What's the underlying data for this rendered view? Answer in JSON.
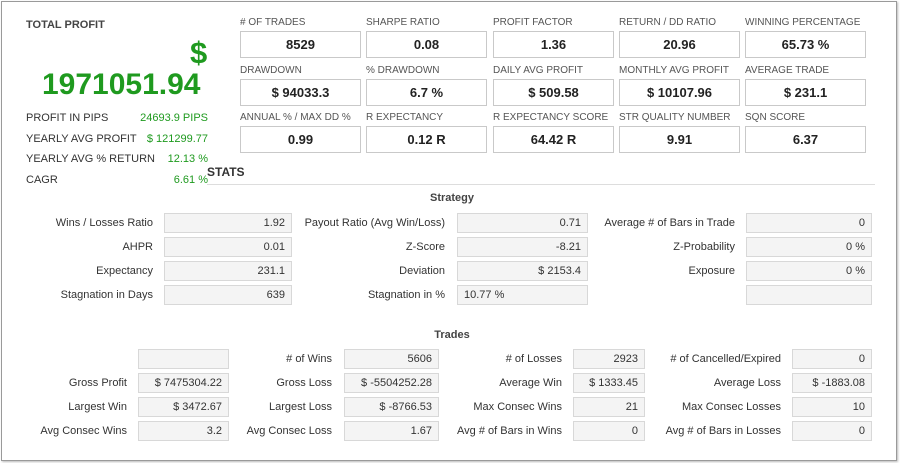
{
  "total_profit": {
    "title": "TOTAL PROFIT",
    "currency": "$",
    "value": "1971051.94",
    "rows": [
      {
        "label": "PROFIT IN PIPS",
        "value": "24693.9 PIPS"
      },
      {
        "label": "YEARLY AVG PROFIT",
        "value": "$ 121299.77"
      },
      {
        "label": "YEARLY AVG % RETURN",
        "value": "12.13 %"
      },
      {
        "label": "CAGR",
        "value": "6.61 %"
      }
    ]
  },
  "metrics": [
    [
      {
        "label": "# OF TRADES",
        "value": "8529"
      },
      {
        "label": "SHARPE RATIO",
        "value": "0.08"
      },
      {
        "label": "PROFIT FACTOR",
        "value": "1.36"
      },
      {
        "label": "RETURN / DD RATIO",
        "value": "20.96"
      },
      {
        "label": "WINNING PERCENTAGE",
        "value": "65.73 %"
      }
    ],
    [
      {
        "label": "DRAWDOWN",
        "value": "$ 94033.3"
      },
      {
        "label": "% DRAWDOWN",
        "value": "6.7 %"
      },
      {
        "label": "DAILY AVG PROFIT",
        "value": "$ 509.58"
      },
      {
        "label": "MONTHLY AVG PROFIT",
        "value": "$ 10107.96"
      },
      {
        "label": "AVERAGE TRADE",
        "value": "$ 231.1"
      }
    ],
    [
      {
        "label": "ANNUAL % / MAX DD %",
        "value": "0.99"
      },
      {
        "label": "R EXPECTANCY",
        "value": "0.12 R"
      },
      {
        "label": "R EXPECTANCY SCORE",
        "value": "64.42 R"
      },
      {
        "label": "STR QUALITY NUMBER",
        "value": "9.91"
      },
      {
        "label": "SQN SCORE",
        "value": "6.37"
      }
    ]
  ],
  "stats": {
    "title": "STATS",
    "strategy": {
      "title": "Strategy",
      "rows": [
        [
          {
            "label": "Wins / Losses Ratio",
            "value": "1.92"
          },
          {
            "label": "Payout Ratio (Avg Win/Loss)",
            "value": "0.71"
          },
          {
            "label": "Average # of Bars in Trade",
            "value": "0"
          }
        ],
        [
          {
            "label": "AHPR",
            "value": "0.01"
          },
          {
            "label": "Z-Score",
            "value": "-8.21"
          },
          {
            "label": "Z-Probability",
            "value": "0 %"
          }
        ],
        [
          {
            "label": "Expectancy",
            "value": "231.1"
          },
          {
            "label": "Deviation",
            "value": "$ 2153.4"
          },
          {
            "label": "Exposure",
            "value": "0 %"
          }
        ],
        [
          {
            "label": "Stagnation in Days",
            "value": "639"
          },
          {
            "label": "Stagnation in %",
            "value": "10.77 %"
          },
          {
            "label": "",
            "value": ""
          }
        ]
      ]
    },
    "trades": {
      "title": "Trades",
      "rows": [
        [
          {
            "label": "",
            "value": ""
          },
          {
            "label": "# of Wins",
            "value": "5606"
          },
          {
            "label": "# of Losses",
            "value": "2923"
          },
          {
            "label": "# of Cancelled/Expired",
            "value": "0"
          }
        ],
        [
          {
            "label": "Gross Profit",
            "value": "$ 7475304.22"
          },
          {
            "label": "Gross Loss",
            "value": "$ -5504252.28"
          },
          {
            "label": "Average Win",
            "value": "$ 1333.45"
          },
          {
            "label": "Average Loss",
            "value": "$ -1883.08"
          }
        ],
        [
          {
            "label": "Largest Win",
            "value": "$ 3472.67"
          },
          {
            "label": "Largest Loss",
            "value": "$ -8766.53"
          },
          {
            "label": "Max Consec Wins",
            "value": "21"
          },
          {
            "label": "Max Consec Losses",
            "value": "10"
          }
        ],
        [
          {
            "label": "Avg Consec Wins",
            "value": "3.2"
          },
          {
            "label": "Avg Consec Loss",
            "value": "1.67"
          },
          {
            "label": "Avg # of Bars in Wins",
            "value": "0"
          },
          {
            "label": "Avg # of Bars in Losses",
            "value": "0"
          }
        ]
      ]
    }
  }
}
